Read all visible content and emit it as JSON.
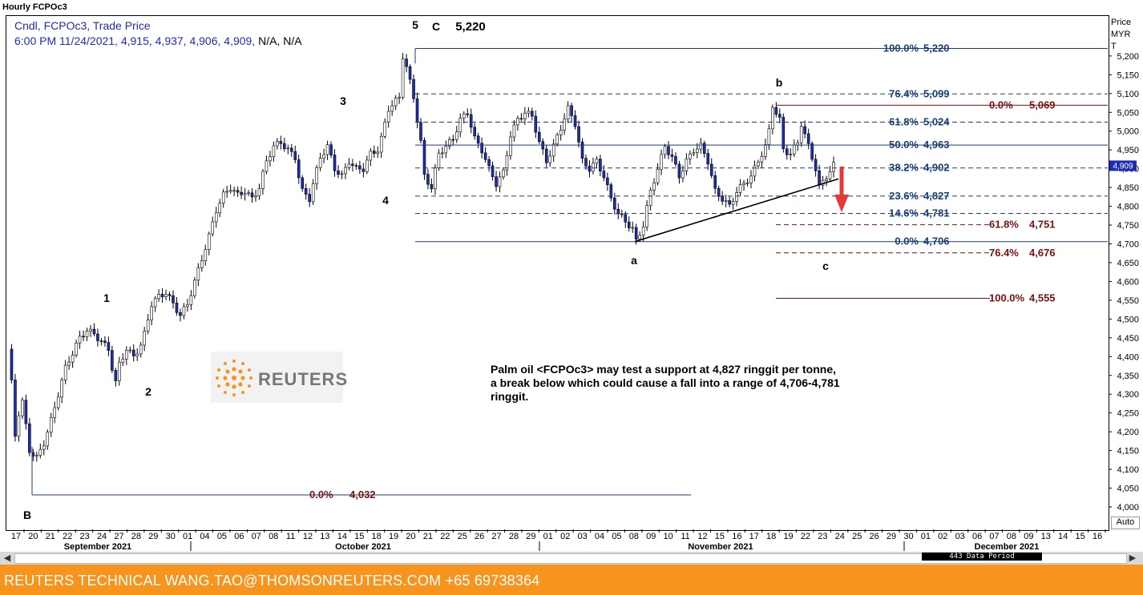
{
  "chart_title": "Hourly FCPOc3",
  "info_line1": "Cndl, FCPOc3, Trade Price",
  "info_line2_blue": "6:00 PM 11/24/2021, 4,915, 4,937, 4,906, 4,909,",
  "info_line2_black": "N/A, N/A",
  "price_header": [
    "Price",
    "MYR",
    "T"
  ],
  "auto_label": "Auto",
  "last_price_tag": "4,909",
  "footer_text": "REUTERS TECHNICAL  WANG.TAO@THOMSONREUTERS.COM  +65 69738364",
  "logo_text": "REUTERS",
  "annotation_text": "Palm oil <FCPOc3> may test a support at 4,827 ringgit per tonne, a break below which could cause a fall into a range of 4,706-4,781 ringgit.",
  "data_period_label": "443 Data Period",
  "colors": {
    "up": "#ffffff",
    "down": "#1f2db4",
    "fib_blue": "#1a3e7a",
    "fib_red": "#7a1010",
    "arrow": "#e53935",
    "footer": "#f7941d"
  },
  "chart_data": {
    "type": "candlestick",
    "ylim": [
      3980,
      5250
    ],
    "y_ticks": [
      "4,000",
      "4,050",
      "4,100",
      "4,150",
      "4,200",
      "4,250",
      "4,300",
      "4,350",
      "4,400",
      "4,450",
      "4,500",
      "4,550",
      "4,600",
      "4,650",
      "4,700",
      "4,750",
      "4,800",
      "4,850",
      "4,900",
      "4,950",
      "5,000",
      "5,050",
      "5,100",
      "5,150",
      "5,200"
    ],
    "x_tick_labels": [
      "17",
      "20",
      "21",
      "22",
      "23",
      "24",
      "27",
      "28",
      "29",
      "30",
      "01",
      "04",
      "05",
      "06",
      "07",
      "08",
      "11",
      "12",
      "13",
      "14",
      "15",
      "18",
      "19",
      "20",
      "21",
      "22",
      "25",
      "26",
      "27",
      "28",
      "29",
      "01",
      "02",
      "03",
      "04",
      "05",
      "08",
      "09",
      "10",
      "11",
      "12",
      "15",
      "16",
      "17",
      "18",
      "19",
      "22",
      "23",
      "24",
      "25",
      "26",
      "29",
      "30",
      "01",
      "02",
      "03",
      "06",
      "07",
      "08",
      "09",
      "13",
      "14",
      "15",
      "16"
    ],
    "months": [
      "September 2021",
      "October 2021",
      "November 2021",
      "December 2021"
    ],
    "price_path": [
      [
        0,
        4420
      ],
      [
        1,
        4330
      ],
      [
        2,
        4190
      ],
      [
        3,
        4250
      ],
      [
        4,
        4280
      ],
      [
        6,
        4150
      ],
      [
        8,
        4130
      ],
      [
        10,
        4170
      ],
      [
        12,
        4230
      ],
      [
        14,
        4300
      ],
      [
        16,
        4370
      ],
      [
        18,
        4410
      ],
      [
        20,
        4450
      ],
      [
        22,
        4470
      ],
      [
        24,
        4460
      ],
      [
        26,
        4440
      ],
      [
        28,
        4420
      ],
      [
        29,
        4370
      ],
      [
        30,
        4330
      ],
      [
        31,
        4380
      ],
      [
        33,
        4420
      ],
      [
        35,
        4400
      ],
      [
        37,
        4430
      ],
      [
        38,
        4460
      ],
      [
        40,
        4540
      ],
      [
        42,
        4560
      ],
      [
        44,
        4570
      ],
      [
        46,
        4540
      ],
      [
        48,
        4510
      ],
      [
        50,
        4540
      ],
      [
        52,
        4600
      ],
      [
        54,
        4660
      ],
      [
        56,
        4720
      ],
      [
        58,
        4790
      ],
      [
        60,
        4830
      ],
      [
        62,
        4850
      ],
      [
        64,
        4830
      ],
      [
        66,
        4840
      ],
      [
        68,
        4820
      ],
      [
        70,
        4850
      ],
      [
        72,
        4920
      ],
      [
        74,
        4960
      ],
      [
        76,
        4970
      ],
      [
        78,
        4950
      ],
      [
        80,
        4930
      ],
      [
        81,
        4880
      ],
      [
        82,
        4840
      ],
      [
        84,
        4820
      ],
      [
        85,
        4860
      ],
      [
        87,
        4930
      ],
      [
        89,
        4960
      ],
      [
        91,
        4900
      ],
      [
        93,
        4880
      ],
      [
        95,
        4920
      ],
      [
        97,
        4900
      ],
      [
        99,
        4900
      ],
      [
        101,
        4940
      ],
      [
        103,
        4950
      ],
      [
        104,
        4980
      ],
      [
        106,
        5060
      ],
      [
        108,
        5080
      ],
      [
        109,
        5090
      ],
      [
        110,
        5200
      ],
      [
        111,
        5170
      ],
      [
        112,
        5130
      ],
      [
        113,
        5090
      ],
      [
        115,
        4970
      ],
      [
        116,
        4880
      ],
      [
        118,
        4850
      ],
      [
        120,
        4940
      ],
      [
        122,
        4960
      ],
      [
        124,
        4980
      ],
      [
        126,
        5030
      ],
      [
        128,
        5050
      ],
      [
        130,
        4980
      ],
      [
        132,
        4950
      ],
      [
        134,
        4900
      ],
      [
        136,
        4860
      ],
      [
        138,
        4890
      ],
      [
        140,
        4990
      ],
      [
        142,
        5030
      ],
      [
        144,
        5050
      ],
      [
        146,
        5040
      ],
      [
        148,
        4970
      ],
      [
        150,
        4920
      ],
      [
        152,
        4960
      ],
      [
        154,
        5010
      ],
      [
        156,
        5060
      ],
      [
        158,
        5020
      ],
      [
        160,
        4920
      ],
      [
        162,
        4900
      ],
      [
        164,
        4920
      ],
      [
        166,
        4880
      ],
      [
        168,
        4820
      ],
      [
        170,
        4780
      ],
      [
        172,
        4760
      ],
      [
        174,
        4740
      ],
      [
        175,
        4706
      ],
      [
        177,
        4750
      ],
      [
        179,
        4840
      ],
      [
        181,
        4900
      ],
      [
        183,
        4960
      ],
      [
        185,
        4930
      ],
      [
        187,
        4880
      ],
      [
        189,
        4920
      ],
      [
        191,
        4950
      ],
      [
        193,
        4960
      ],
      [
        195,
        4920
      ],
      [
        197,
        4840
      ],
      [
        199,
        4820
      ],
      [
        201,
        4800
      ],
      [
        203,
        4840
      ],
      [
        205,
        4860
      ],
      [
        207,
        4880
      ],
      [
        209,
        4920
      ],
      [
        211,
        4960
      ],
      [
        212,
        5000
      ],
      [
        213,
        5069
      ],
      [
        215,
        5030
      ],
      [
        216,
        4950
      ],
      [
        218,
        4940
      ],
      [
        220,
        4970
      ],
      [
        221,
        5020
      ],
      [
        223,
        4960
      ],
      [
        225,
        4900
      ],
      [
        226,
        4850
      ],
      [
        228,
        4880
      ],
      [
        230,
        4909
      ]
    ],
    "x_count": 231,
    "fib_up": [
      {
        "pct": "100.0%",
        "value": "5,220",
        "price": 5220,
        "style": "solid"
      },
      {
        "pct": "76.4%",
        "value": "5,099",
        "price": 5099,
        "style": "dashed"
      },
      {
        "pct": "61.8%",
        "value": "5,024",
        "price": 5024,
        "style": "dashed"
      },
      {
        "pct": "50.0%",
        "value": "4,963",
        "price": 4963,
        "style": "solid"
      },
      {
        "pct": "38.2%",
        "value": "4,902",
        "price": 4902,
        "style": "dashed"
      },
      {
        "pct": "23.6%",
        "value": "4,827",
        "price": 4827,
        "style": "dashed"
      },
      {
        "pct": "14.6%",
        "value": "4,781",
        "price": 4781,
        "style": "dashed"
      },
      {
        "pct": "0.0%",
        "value": "4,706",
        "price": 4706,
        "style": "solid"
      }
    ],
    "fib_down": [
      {
        "pct": "0.0%",
        "value": "5,069",
        "price": 5069,
        "style": "solid"
      },
      {
        "pct": "61.8%",
        "value": "4,751",
        "price": 4751,
        "style": "dashed"
      },
      {
        "pct": "76.4%",
        "value": "4,676",
        "price": 4676,
        "style": "dashed"
      },
      {
        "pct": "100.0%",
        "value": "4,555",
        "price": 4555,
        "style": "solid"
      }
    ],
    "fib_base": {
      "pct": "0.0%",
      "value": "4,032",
      "price": 4032
    },
    "wave_labels": [
      "1",
      "2",
      "3",
      "4",
      "5",
      "C",
      "5,220",
      "b",
      "a",
      "c",
      "B"
    ]
  }
}
